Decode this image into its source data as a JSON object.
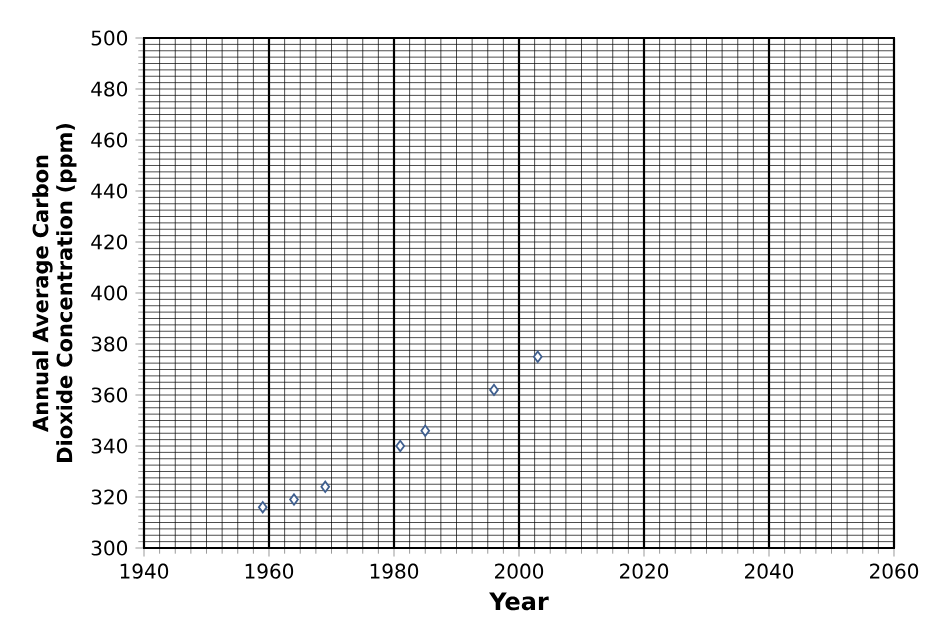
{
  "chart_data": {
    "type": "scatter",
    "xlabel": "Year",
    "ylabel": "Annual Average Carbon Dioxide Concentration (ppm)",
    "x": [
      1959,
      1964,
      1969,
      1981,
      1985,
      1996,
      2003
    ],
    "series": [
      {
        "color": "#3f5f8f",
        "values": [
          316,
          319,
          324,
          340,
          346,
          362,
          375
        ]
      }
    ],
    "xlim": [
      1940,
      2060
    ],
    "xticks": [
      1940,
      1960,
      1980,
      2000,
      2020,
      2040,
      2060
    ],
    "ylim": [
      300,
      500
    ],
    "yticks": [
      300,
      320,
      340,
      360,
      380,
      400,
      420,
      440,
      460,
      480,
      500
    ],
    "grid": true,
    "marker": "diamond"
  }
}
